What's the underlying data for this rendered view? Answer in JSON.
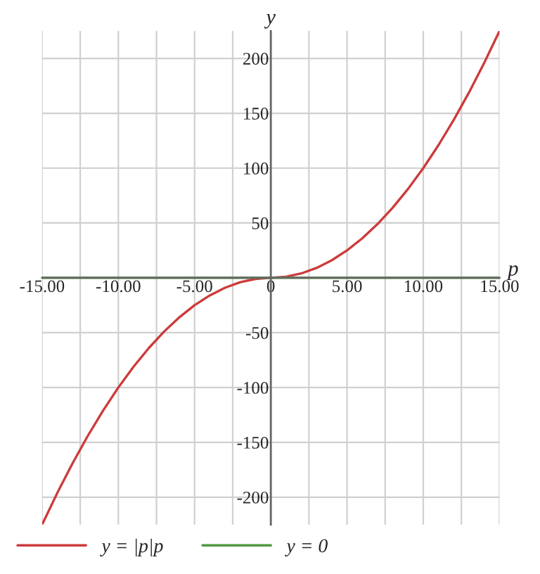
{
  "chart_data": {
    "type": "line",
    "xlabel": "p",
    "ylabel": "y",
    "xlim": [
      -15,
      15
    ],
    "ylim": [
      -225,
      225
    ],
    "xticks": [
      {
        "value": -15,
        "label": "-15.00"
      },
      {
        "value": -12.5,
        "label": null
      },
      {
        "value": -10,
        "label": "-10.00"
      },
      {
        "value": -7.5,
        "label": null
      },
      {
        "value": -5,
        "label": "-5.00"
      },
      {
        "value": -2.5,
        "label": null
      },
      0,
      {
        "value": 2.5,
        "label": null
      },
      {
        "value": 5,
        "label": "5.00"
      },
      {
        "value": 7.5,
        "label": null
      },
      {
        "value": 10,
        "label": "10.00"
      },
      {
        "value": 12.5,
        "label": null
      },
      {
        "value": 15,
        "label": "15.00"
      }
    ],
    "yticks": [
      -200,
      -150,
      -100,
      -50,
      50,
      100,
      150,
      200
    ],
    "grid": true,
    "legend": "bottom",
    "marker": "none",
    "line_style": "solid",
    "series": [
      {
        "name": "y = |p|p",
        "color": "#cc3b3b",
        "x": [
          -15,
          -14,
          -13,
          -12,
          -11,
          -10,
          -9,
          -8,
          -7,
          -6,
          -5,
          -4,
          -3,
          -2,
          -1,
          0,
          1,
          2,
          3,
          4,
          5,
          6,
          7,
          8,
          9,
          10,
          11,
          12,
          13,
          14,
          15
        ],
        "values": [
          -225,
          -196,
          -169,
          -144,
          -121,
          -100,
          -81,
          -64,
          -49,
          -36,
          -25,
          -16,
          -9,
          -4,
          -1,
          0,
          1,
          4,
          9,
          16,
          25,
          36,
          49,
          64,
          81,
          100,
          121,
          144,
          169,
          196,
          225
        ]
      },
      {
        "name": "y = 0",
        "color": "#4f9a3f",
        "x": [
          -15,
          15
        ],
        "values": [
          0,
          0
        ]
      }
    ]
  }
}
